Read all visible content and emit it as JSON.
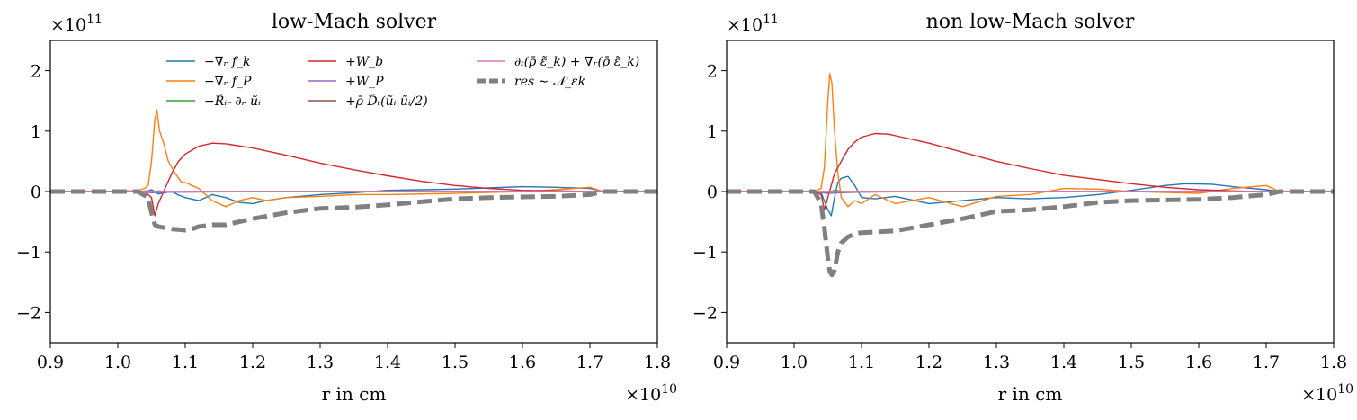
{
  "chart_data": [
    {
      "type": "line",
      "title": "low-Mach solver",
      "xlabel": "r in cm",
      "ylabel": "",
      "x_multiplier": "×10",
      "x_exponent": "10",
      "y_multiplier": "×10",
      "y_exponent": "11",
      "xlim": [
        0.9,
        1.8
      ],
      "ylim": [
        -2.5,
        2.5
      ],
      "xticks": [
        "0.9",
        "1.0",
        "1.1",
        "1.2",
        "1.3",
        "1.4",
        "1.5",
        "1.6",
        "1.7",
        "1.8"
      ],
      "yticks": [
        "−2",
        "−1",
        "0",
        "1",
        "2"
      ],
      "grid": false,
      "legend_position": "top",
      "legend": [
        {
          "label": "−∇ᵣ f_k",
          "color": "#1f77b4"
        },
        {
          "label": "−∇ᵣ f_P",
          "color": "#ff7f0e"
        },
        {
          "label": "−R̃ᵢᵣ ∂ᵣ ũᵢ",
          "color": "#2ca02c"
        },
        {
          "label": "+W_b",
          "color": "#d62728"
        },
        {
          "label": "+W_P",
          "color": "#9467bd"
        },
        {
          "label": "+ρ̄ D̃ₜ(ũᵢ ũᵢ/2)",
          "color": "#8c564b"
        },
        {
          "label": "∂ₜ(ρ̄ ε̃_k) + ∇ᵣ(ρ̄ ε̃_k)",
          "color": "#e377c2"
        },
        {
          "label": "res ∼ 𝒩_εk",
          "color": "#808080"
        }
      ],
      "series": [
        {
          "name": "−∇ᵣ f_k",
          "color": "#1f77b4",
          "x": [
            0.9,
            1.0,
            1.03,
            1.045,
            1.05,
            1.055,
            1.06,
            1.07,
            1.08,
            1.09,
            1.1,
            1.12,
            1.14,
            1.16,
            1.18,
            1.2,
            1.22,
            1.25,
            1.3,
            1.35,
            1.4,
            1.45,
            1.5,
            1.55,
            1.6,
            1.65,
            1.7,
            1.72,
            1.8
          ],
          "y": [
            0,
            0,
            0,
            0.01,
            0.03,
            0,
            -0.04,
            -0.02,
            0,
            -0.06,
            -0.1,
            -0.15,
            -0.05,
            -0.1,
            -0.18,
            -0.2,
            -0.15,
            -0.1,
            -0.05,
            -0.02,
            0.02,
            0.03,
            0.04,
            0.06,
            0.08,
            0.07,
            0.05,
            0,
            0
          ]
        },
        {
          "name": "−∇ᵣ f_P",
          "color": "#ff7f0e",
          "x": [
            0.9,
            1.0,
            1.03,
            1.04,
            1.045,
            1.05,
            1.055,
            1.058,
            1.062,
            1.068,
            1.075,
            1.085,
            1.095,
            1.1,
            1.11,
            1.12,
            1.14,
            1.16,
            1.18,
            1.2,
            1.22,
            1.25,
            1.3,
            1.35,
            1.4,
            1.5,
            1.6,
            1.65,
            1.7,
            1.72,
            1.8
          ],
          "y": [
            0,
            0,
            0.02,
            0.05,
            0.1,
            0.5,
            1.2,
            1.35,
            1.0,
            0.8,
            0.5,
            0.3,
            0.15,
            0.15,
            0.1,
            0.05,
            -0.15,
            -0.25,
            -0.15,
            -0.1,
            -0.15,
            -0.1,
            -0.08,
            -0.05,
            -0.05,
            -0.03,
            0,
            0.03,
            0.07,
            0,
            0
          ]
        },
        {
          "name": "−R̃ᵢᵣ ∂ᵣ ũᵢ",
          "color": "#2ca02c",
          "x": [
            0.9,
            1.03,
            1.05,
            1.06,
            1.08,
            1.1,
            1.2,
            1.3,
            1.5,
            1.8
          ],
          "y": [
            0,
            0,
            -0.01,
            0.01,
            -0.01,
            0,
            0,
            0,
            0,
            0
          ]
        },
        {
          "name": "+W_b",
          "color": "#d62728",
          "x": [
            0.9,
            1.03,
            1.04,
            1.05,
            1.055,
            1.06,
            1.07,
            1.08,
            1.09,
            1.1,
            1.12,
            1.14,
            1.16,
            1.2,
            1.25,
            1.3,
            1.35,
            1.4,
            1.45,
            1.5,
            1.55,
            1.6,
            1.65,
            1.7,
            1.72,
            1.8
          ],
          "y": [
            0,
            0,
            0,
            -0.1,
            -0.4,
            -0.2,
            0.05,
            0.3,
            0.5,
            0.62,
            0.75,
            0.8,
            0.79,
            0.72,
            0.6,
            0.47,
            0.36,
            0.26,
            0.17,
            0.1,
            0.05,
            0.02,
            0.01,
            0,
            0,
            0
          ]
        },
        {
          "name": "+W_P",
          "color": "#9467bd",
          "x": [
            0.9,
            1.03,
            1.05,
            1.07,
            1.1,
            1.2,
            1.4,
            1.6,
            1.8
          ],
          "y": [
            0,
            0,
            -0.02,
            -0.01,
            -0.01,
            0,
            0,
            0,
            0
          ]
        },
        {
          "name": "+ρ̄ D̃ₜ(ũᵢ ũᵢ/2)",
          "color": "#8c564b",
          "x": [
            0.9,
            1.03,
            1.06,
            1.1,
            1.3,
            1.5,
            1.8
          ],
          "y": [
            0,
            0,
            0,
            0,
            0,
            0,
            0
          ]
        },
        {
          "name": "∂ₜ(ρ̄ ε̃_k) + ∇ᵣ(ρ̄ ε̃_k)",
          "color": "#e377c2",
          "x": [
            0.9,
            1.2,
            1.5,
            1.8
          ],
          "y": [
            0,
            0,
            0,
            0
          ]
        },
        {
          "name": "res ∼ 𝒩_εk",
          "color": "#808080",
          "x": [
            0.9,
            1.0,
            1.03,
            1.045,
            1.05,
            1.055,
            1.06,
            1.07,
            1.08,
            1.09,
            1.1,
            1.11,
            1.12,
            1.14,
            1.16,
            1.2,
            1.25,
            1.3,
            1.35,
            1.4,
            1.45,
            1.5,
            1.55,
            1.6,
            1.65,
            1.7,
            1.72,
            1.75,
            1.8
          ],
          "y": [
            0,
            0,
            0,
            -0.1,
            -0.35,
            -0.55,
            -0.58,
            -0.6,
            -0.62,
            -0.63,
            -0.64,
            -0.62,
            -0.58,
            -0.55,
            -0.55,
            -0.45,
            -0.35,
            -0.28,
            -0.26,
            -0.22,
            -0.17,
            -0.12,
            -0.1,
            -0.09,
            -0.08,
            -0.05,
            0,
            0,
            0
          ]
        }
      ]
    },
    {
      "type": "line",
      "title": "non low-Mach solver",
      "xlabel": "r in cm",
      "ylabel": "",
      "x_multiplier": "×10",
      "x_exponent": "10",
      "y_multiplier": "×10",
      "y_exponent": "11",
      "xlim": [
        0.9,
        1.8
      ],
      "ylim": [
        -2.5,
        2.5
      ],
      "xticks": [
        "0.9",
        "1.0",
        "1.1",
        "1.2",
        "1.3",
        "1.4",
        "1.5",
        "1.6",
        "1.7",
        "1.8"
      ],
      "yticks": [
        "−2",
        "−1",
        "0",
        "1",
        "2"
      ],
      "grid": false,
      "series": [
        {
          "name": "−∇ᵣ f_k",
          "color": "#1f77b4",
          "x": [
            0.9,
            1.0,
            1.03,
            1.04,
            1.05,
            1.055,
            1.06,
            1.065,
            1.07,
            1.08,
            1.09,
            1.1,
            1.12,
            1.15,
            1.2,
            1.25,
            1.3,
            1.35,
            1.4,
            1.45,
            1.5,
            1.55,
            1.58,
            1.62,
            1.65,
            1.7,
            1.72,
            1.8
          ],
          "y": [
            0,
            0,
            0,
            -0.02,
            -0.3,
            -0.4,
            -0.1,
            0.15,
            0.22,
            0.25,
            0.1,
            -0.1,
            -0.12,
            -0.08,
            -0.2,
            -0.15,
            -0.1,
            -0.12,
            -0.1,
            -0.05,
            0.02,
            0.1,
            0.13,
            0.12,
            0.08,
            0.03,
            0,
            0
          ]
        },
        {
          "name": "−∇ᵣ f_P",
          "color": "#ff7f0e",
          "x": [
            0.9,
            1.0,
            1.03,
            1.04,
            1.045,
            1.05,
            1.053,
            1.056,
            1.06,
            1.065,
            1.07,
            1.08,
            1.09,
            1.1,
            1.12,
            1.15,
            1.2,
            1.25,
            1.3,
            1.35,
            1.4,
            1.45,
            1.5,
            1.6,
            1.65,
            1.7,
            1.72,
            1.8
          ],
          "y": [
            0,
            0,
            0,
            0.05,
            0.4,
            1.5,
            1.95,
            1.8,
            1.0,
            0.3,
            -0.1,
            -0.25,
            -0.15,
            -0.2,
            -0.05,
            -0.2,
            -0.1,
            -0.25,
            -0.08,
            -0.05,
            0.05,
            0.04,
            0,
            -0.03,
            0.05,
            0.1,
            0,
            0
          ]
        },
        {
          "name": "−R̃ᵢᵣ ∂ᵣ ũᵢ",
          "color": "#2ca02c",
          "x": [
            0.9,
            1.03,
            1.05,
            1.06,
            1.08,
            1.1,
            1.2,
            1.3,
            1.5,
            1.8
          ],
          "y": [
            0,
            0,
            -0.02,
            0.02,
            -0.01,
            0,
            0,
            0,
            0,
            0
          ]
        },
        {
          "name": "+W_b",
          "color": "#d62728",
          "x": [
            0.9,
            1.03,
            1.04,
            1.045,
            1.05,
            1.055,
            1.06,
            1.07,
            1.08,
            1.09,
            1.1,
            1.12,
            1.14,
            1.16,
            1.2,
            1.25,
            1.3,
            1.35,
            1.4,
            1.45,
            1.5,
            1.55,
            1.6,
            1.65,
            1.7,
            1.72,
            1.8
          ],
          "y": [
            0,
            0,
            -0.05,
            -0.3,
            -0.1,
            0.1,
            0.3,
            0.5,
            0.7,
            0.82,
            0.9,
            0.96,
            0.95,
            0.9,
            0.8,
            0.65,
            0.5,
            0.38,
            0.27,
            0.2,
            0.13,
            0.07,
            0.03,
            0.01,
            0,
            0,
            0
          ]
        },
        {
          "name": "+W_P",
          "color": "#9467bd",
          "x": [
            0.9,
            1.03,
            1.05,
            1.07,
            1.1,
            1.2,
            1.4,
            1.6,
            1.8
          ],
          "y": [
            0,
            0,
            -0.03,
            -0.02,
            -0.01,
            0,
            0,
            0,
            0
          ]
        },
        {
          "name": "+ρ̄ D̃ₜ(ũᵢ ũᵢ/2)",
          "color": "#8c564b",
          "x": [
            0.9,
            1.03,
            1.06,
            1.1,
            1.3,
            1.5,
            1.8
          ],
          "y": [
            0,
            0,
            0,
            0,
            0,
            0,
            0
          ]
        },
        {
          "name": "∂ₜ(ρ̄ ε̃_k) + ∇ᵣ(ρ̄ ε̃_k)",
          "color": "#e377c2",
          "x": [
            0.9,
            1.2,
            1.5,
            1.8
          ],
          "y": [
            0,
            0,
            0,
            0
          ]
        },
        {
          "name": "res ∼ 𝒩_εk",
          "color": "#808080",
          "x": [
            0.9,
            1.0,
            1.03,
            1.04,
            1.045,
            1.05,
            1.053,
            1.056,
            1.06,
            1.065,
            1.07,
            1.08,
            1.09,
            1.1,
            1.12,
            1.15,
            1.2,
            1.25,
            1.3,
            1.35,
            1.4,
            1.45,
            1.5,
            1.55,
            1.6,
            1.65,
            1.7,
            1.72,
            1.75,
            1.8
          ],
          "y": [
            0,
            0,
            0,
            -0.2,
            -0.6,
            -1.1,
            -1.32,
            -1.38,
            -1.3,
            -1.0,
            -0.85,
            -0.75,
            -0.7,
            -0.68,
            -0.67,
            -0.65,
            -0.55,
            -0.45,
            -0.33,
            -0.3,
            -0.25,
            -0.18,
            -0.15,
            -0.14,
            -0.13,
            -0.1,
            -0.05,
            0,
            0,
            0
          ]
        }
      ]
    }
  ]
}
